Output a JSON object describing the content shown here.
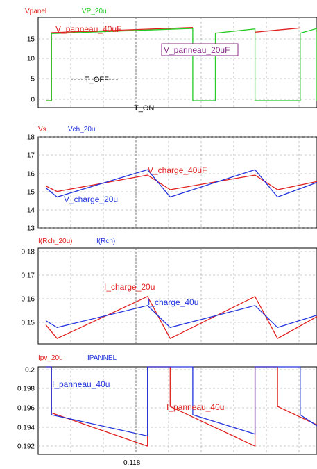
{
  "colors": {
    "red": "#e0201e",
    "green": "#22cc22",
    "blue": "#2233dd",
    "purple": "#8a2a8a",
    "grid": "#9a9a9a",
    "axis": "#000000"
  },
  "x_label": "0.118",
  "chart_data": [
    {
      "type": "line",
      "legend": [
        {
          "name": "Vpanel",
          "color": "red"
        },
        {
          "name": "VP_20u",
          "color": "green"
        }
      ],
      "ylim": [
        -1.5,
        18
      ],
      "yticks": [
        "0",
        "5",
        "10",
        "15"
      ],
      "annotations": [
        {
          "text": "V_panneau_40uF",
          "color": "red",
          "boxed": false
        },
        {
          "text": "V_panneau_20uF",
          "color": "purple",
          "boxed": true
        },
        {
          "text": "T_OFF",
          "color": "axis",
          "boxed": false
        },
        {
          "text": "T_ON",
          "color": "axis",
          "boxed": false
        }
      ],
      "series": [
        {
          "name": "Vpanel",
          "color": "red",
          "x": [
            0,
            0.1,
            0.1,
            2.6,
            2.6,
            3.7,
            3.7,
            4.5,
            4.5,
            5.0,
            5.0,
            5.8
          ],
          "y": [
            0,
            0,
            14.7,
            15.8,
            null,
            null,
            14.8,
            15.7,
            null,
            null,
            14.9,
            15.3
          ]
        },
        {
          "name": "VP_20u",
          "color": "green",
          "x": [
            0,
            0.1,
            0.1,
            2.6,
            2.6,
            3.0,
            3.0,
            3.7,
            3.7,
            4.5,
            4.5,
            4.9,
            4.9,
            5.8
          ],
          "y": [
            0,
            0,
            14.5,
            15.6,
            0,
            0,
            14.6,
            15.5,
            0,
            0,
            14.6,
            15.6,
            0,
            0
          ]
        }
      ]
    },
    {
      "type": "line",
      "legend": [
        {
          "name": "Vs",
          "color": "red"
        },
        {
          "name": "Vch_20u",
          "color": "blue"
        }
      ],
      "ylim": [
        13,
        18
      ],
      "yticks": [
        "13",
        "14",
        "15",
        "16",
        "17",
        "18"
      ],
      "annotations": [
        {
          "text": "V_charge_40uF",
          "color": "red"
        },
        {
          "text": "V_charge_20u",
          "color": "blue"
        }
      ],
      "series": [
        {
          "name": "Vs",
          "color": "red",
          "x": [
            0,
            0.2,
            1.8,
            2.2,
            3.7,
            4.1,
            5.0
          ],
          "y": [
            15.3,
            15.0,
            15.9,
            15.1,
            15.9,
            15.1,
            15.55
          ]
        },
        {
          "name": "Vch_20u",
          "color": "blue",
          "x": [
            0,
            0.2,
            1.8,
            2.2,
            3.7,
            4.1,
            5.0
          ],
          "y": [
            15.2,
            14.7,
            16.2,
            14.7,
            16.2,
            14.7,
            15.5
          ]
        }
      ]
    },
    {
      "type": "line",
      "legend": [
        {
          "name": "I(Rch_20u)",
          "color": "red"
        },
        {
          "name": "I(Rch)",
          "color": "blue"
        }
      ],
      "ylim": [
        0.145,
        0.18
      ],
      "yticks": [
        "0.15",
        "0.16",
        "0.17",
        "0.18"
      ],
      "annotations": [
        {
          "text": "I_charge_20u",
          "color": "red"
        },
        {
          "text": "I_charge_40u",
          "color": "blue"
        }
      ],
      "series": [
        {
          "name": "I(Rch_20u)",
          "color": "red",
          "x": [
            0,
            0.2,
            1.8,
            2.2,
            3.7,
            4.1,
            5.0
          ],
          "y": [
            0.152,
            0.147,
            0.1623,
            0.147,
            0.1623,
            0.147,
            0.155
          ]
        },
        {
          "name": "I(Rch)",
          "color": "blue",
          "x": [
            0,
            0.2,
            1.8,
            2.2,
            3.7,
            4.1,
            5.0
          ],
          "y": [
            0.1535,
            0.151,
            0.159,
            0.151,
            0.159,
            0.151,
            0.1555
          ]
        }
      ]
    },
    {
      "type": "line",
      "legend": [
        {
          "name": "Ipv_20u",
          "color": "red"
        },
        {
          "name": "IPANNEL",
          "color": "blue"
        }
      ],
      "ylim": [
        0.1905,
        0.2
      ],
      "yticks": [
        "0.192",
        "0.194",
        "0.196",
        "0.198",
        "0.2"
      ],
      "annotations": [
        {
          "text": "I_panneau_40u",
          "color": "blue"
        },
        {
          "text": "I_panneau_40u",
          "color": "red"
        }
      ],
      "series": [
        {
          "name": "Ipv_20u",
          "color": "red",
          "x": [
            0,
            0.1,
            0.1,
            1.8,
            1.8,
            2.2,
            2.2,
            3.7,
            3.7,
            4.1,
            4.1,
            5.0
          ],
          "y": [
            0.2,
            0.2,
            0.195,
            0.1914,
            0.2,
            0.2,
            0.1957,
            0.1914,
            0.2,
            0.2,
            0.1957,
            0.1937
          ]
        },
        {
          "name": "IPANNEL",
          "color": "blue",
          "x": [
            0,
            0.1,
            0.1,
            1.8,
            1.8,
            2.6,
            2.6,
            3.7,
            3.7,
            4.5,
            4.5,
            5.0
          ],
          "y": [
            0.2,
            0.2,
            0.1948,
            0.1925,
            0.2,
            0.2,
            0.1948,
            0.1927,
            0.2,
            0.2,
            0.1948,
            0.1936
          ]
        }
      ]
    }
  ]
}
